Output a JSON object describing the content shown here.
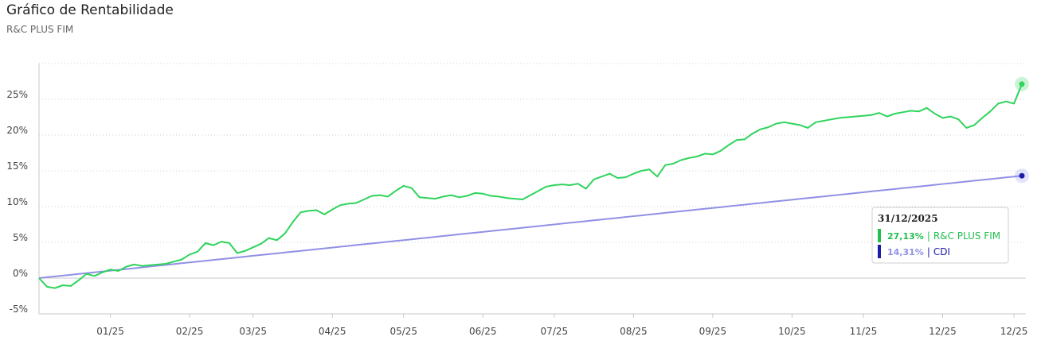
{
  "chart_data": {
    "type": "line",
    "title": "Gráfico de Rentabilidade",
    "subtitle": "R&C PLUS FIM",
    "categories": [
      null,
      null,
      null,
      null,
      null,
      null,
      null,
      null,
      null,
      "01/25",
      null,
      null,
      null,
      null,
      null,
      null,
      null,
      null,
      null,
      "02/25",
      null,
      null,
      null,
      null,
      null,
      null,
      null,
      "03/25",
      null,
      null,
      null,
      null,
      null,
      null,
      null,
      null,
      null,
      "04/25",
      null,
      null,
      null,
      null,
      null,
      null,
      null,
      null,
      "05/25",
      null,
      null,
      null,
      null,
      null,
      null,
      null,
      null,
      null,
      "06/25",
      null,
      null,
      null,
      null,
      null,
      null,
      null,
      null,
      "07/25",
      null,
      null,
      null,
      null,
      null,
      null,
      null,
      null,
      null,
      "08/25",
      null,
      null,
      null,
      null,
      null,
      null,
      null,
      null,
      null,
      "09/25",
      null,
      null,
      null,
      null,
      null,
      null,
      null,
      null,
      null,
      "10/25",
      null,
      null,
      null,
      null,
      null,
      null,
      null,
      null,
      "11/25",
      null,
      null,
      null,
      null,
      null,
      null,
      null,
      null,
      null,
      "12/25",
      null,
      null,
      null,
      null,
      null,
      null,
      null,
      null,
      "12/25",
      null
    ],
    "series": [
      {
        "name": "R&C PLUS FIM",
        "color": "#2ed45c",
        "values": [
          0,
          -1.2,
          -1.4,
          -1.0,
          -1.1,
          -0.3,
          0.6,
          0.3,
          0.8,
          1.2,
          1.0,
          1.6,
          1.9,
          1.7,
          1.8,
          1.9,
          2.0,
          2.3,
          2.6,
          3.3,
          3.7,
          4.9,
          4.6,
          5.1,
          4.9,
          3.5,
          3.8,
          4.3,
          4.8,
          5.6,
          5.3,
          6.2,
          7.8,
          9.2,
          9.4,
          9.5,
          8.9,
          9.6,
          10.2,
          10.4,
          10.5,
          11.0,
          11.5,
          11.6,
          11.4,
          12.2,
          12.9,
          12.6,
          11.3,
          11.2,
          11.1,
          11.4,
          11.6,
          11.3,
          11.5,
          11.9,
          11.8,
          11.5,
          11.4,
          11.2,
          11.1,
          11.0,
          11.6,
          12.2,
          12.8,
          13.0,
          13.1,
          13.0,
          13.2,
          12.5,
          13.8,
          14.2,
          14.6,
          14.0,
          14.1,
          14.6,
          15.0,
          15.2,
          14.2,
          15.8,
          16.0,
          16.5,
          16.8,
          17.0,
          17.4,
          17.3,
          17.8,
          18.6,
          19.3,
          19.4,
          20.2,
          20.8,
          21.1,
          21.6,
          21.8,
          21.6,
          21.4,
          21.0,
          21.8,
          22.0,
          22.2,
          22.4,
          22.5,
          22.6,
          22.7,
          22.8,
          23.1,
          22.6,
          23.0,
          23.2,
          23.4,
          23.3,
          23.8,
          23.0,
          22.4,
          22.6,
          22.2,
          21.0,
          21.4,
          22.4,
          23.3,
          24.4,
          24.7,
          24.4,
          27.13
        ]
      },
      {
        "name": "CDI",
        "color": "#9090e6",
        "values": [
          0,
          0.12,
          0.23,
          0.35,
          0.46,
          0.58,
          0.69,
          0.81,
          0.92,
          1.04,
          1.15,
          1.27,
          1.38,
          1.5,
          1.62,
          1.73,
          1.85,
          1.96,
          2.08,
          2.19,
          2.31,
          2.42,
          2.54,
          2.65,
          2.77,
          2.89,
          3.0,
          3.12,
          3.23,
          3.35,
          3.46,
          3.58,
          3.69,
          3.81,
          3.92,
          4.04,
          4.15,
          4.27,
          4.39,
          4.5,
          4.62,
          4.73,
          4.85,
          4.96,
          5.08,
          5.19,
          5.31,
          5.42,
          5.54,
          5.65,
          5.77,
          5.89,
          6.0,
          6.12,
          6.23,
          6.35,
          6.46,
          6.58,
          6.69,
          6.81,
          6.92,
          7.04,
          7.15,
          7.27,
          7.39,
          7.5,
          7.62,
          7.73,
          7.85,
          7.96,
          8.08,
          8.19,
          8.31,
          8.42,
          8.54,
          8.66,
          8.77,
          8.89,
          9.0,
          9.12,
          9.23,
          9.35,
          9.46,
          9.58,
          9.69,
          9.81,
          9.92,
          10.04,
          10.16,
          10.27,
          10.39,
          10.5,
          10.62,
          10.73,
          10.85,
          10.96,
          11.08,
          11.19,
          11.31,
          11.42,
          11.54,
          11.66,
          11.77,
          11.89,
          12.0,
          12.12,
          12.23,
          12.35,
          12.46,
          12.58,
          12.69,
          12.81,
          12.92,
          13.04,
          13.16,
          13.27,
          13.39,
          13.5,
          13.62,
          13.73,
          13.85,
          13.96,
          14.08,
          14.19,
          14.31
        ]
      }
    ],
    "ylim": [
      -5,
      30
    ],
    "yticks": [
      {
        "value": -5,
        "label": "-5%"
      },
      {
        "value": 0,
        "label": "0%"
      },
      {
        "value": 5,
        "label": "5%"
      },
      {
        "value": 10,
        "label": "10%"
      },
      {
        "value": 15,
        "label": "15%"
      },
      {
        "value": 20,
        "label": "20%"
      },
      {
        "value": 25,
        "label": "25%"
      }
    ],
    "grid": true,
    "tooltip": {
      "title": "31/12/2025",
      "separator": "|",
      "items": [
        {
          "value": 27.13,
          "label": "27,13%",
          "color": "#22c04f"
        },
        {
          "value": 14.31,
          "label": "14,31%",
          "color": "#1c1ca8"
        }
      ]
    }
  }
}
